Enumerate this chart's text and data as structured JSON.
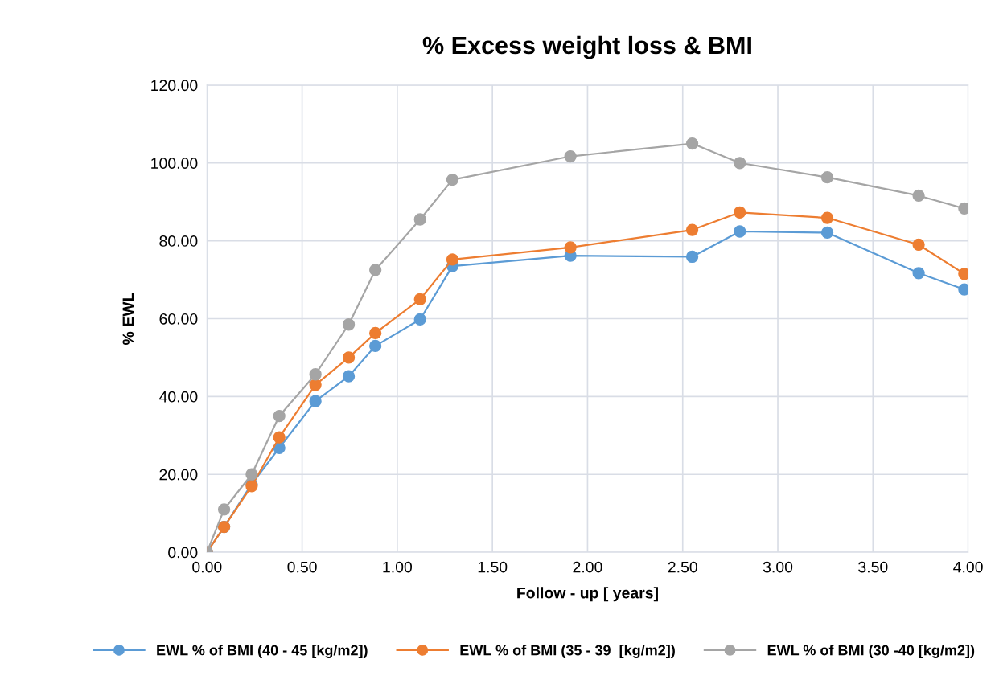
{
  "chart_data": {
    "type": "line",
    "title": "% Excess weight loss & BMI",
    "xlabel": "Follow - up [ years]",
    "ylabel": "% EWL",
    "x": [
      0,
      0.09,
      0.235,
      0.38,
      0.57,
      0.745,
      0.885,
      1.12,
      1.29,
      1.91,
      2.55,
      2.8,
      3.26,
      3.74,
      3.98
    ],
    "series": [
      {
        "name": "EWL % of BMI (40 - 45 [kg/m2])",
        "color": "#5b9bd5",
        "values": [
          0,
          6.5,
          17.5,
          26.8,
          38.8,
          45.2,
          53,
          59.8,
          73.5,
          76.2,
          75.9,
          82.4,
          82.1,
          71.7,
          67.5
        ]
      },
      {
        "name": "EWL % of BMI (35 - 39  [kg/m2])",
        "color": "#ed7d31",
        "values": [
          0,
          6.5,
          17,
          29.5,
          43,
          50,
          56.3,
          65,
          75.2,
          78.3,
          82.8,
          87.3,
          85.9,
          79,
          71.5
        ]
      },
      {
        "name": "EWL % of BMI (30 -40 [kg/m2])",
        "color": "#a5a5a5",
        "values": [
          0,
          11,
          20,
          35,
          45.7,
          58.5,
          72.5,
          85.5,
          95.7,
          101.7,
          105,
          100,
          96.3,
          91.6,
          88.3
        ]
      }
    ],
    "xlim": [
      0,
      4
    ],
    "xticks": [
      {
        "value": 0,
        "label": "0.00"
      },
      {
        "value": 0.5,
        "label": "0.50"
      },
      {
        "value": 1,
        "label": "1.00"
      },
      {
        "value": 1.5,
        "label": "1.50"
      },
      {
        "value": 2,
        "label": "2.00"
      },
      {
        "value": 2.5,
        "label": "2.50"
      },
      {
        "value": 3,
        "label": "3.00"
      },
      {
        "value": 3.5,
        "label": "3.50"
      },
      {
        "value": 4,
        "label": "4.00"
      }
    ],
    "ylim": [
      0,
      120
    ],
    "yticks": [
      {
        "value": 0,
        "label": "0.00"
      },
      {
        "value": 20,
        "label": "20.00"
      },
      {
        "value": 40,
        "label": "40.00"
      },
      {
        "value": 60,
        "label": "60.00"
      },
      {
        "value": 80,
        "label": "80.00"
      },
      {
        "value": 100,
        "label": "100.00"
      },
      {
        "value": 120,
        "label": "120.00"
      }
    ],
    "grid": true,
    "legend": "bottom",
    "marker": "circle",
    "line_style": "solid"
  }
}
